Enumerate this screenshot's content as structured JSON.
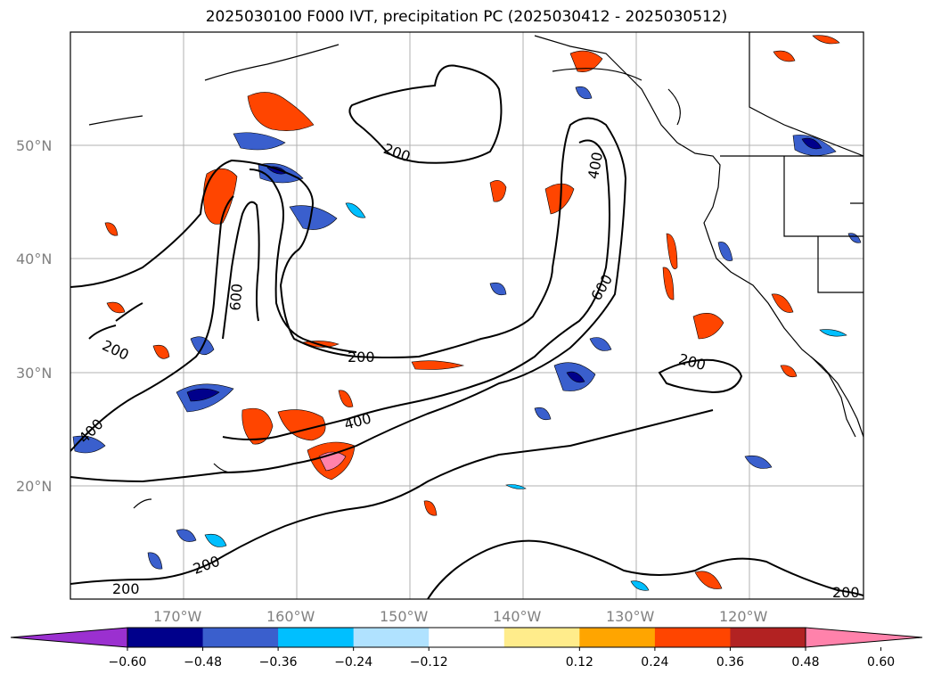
{
  "title": "2025030100 F000 IVT, precipitation PC (2025030412 - 2025030512)",
  "map": {
    "lon_range": [
      -180,
      -110
    ],
    "lat_range": [
      10,
      60
    ],
    "lat_ticks": [
      "20°N",
      "30°N",
      "40°N",
      "50°N"
    ],
    "lon_ticks": [
      "170°W",
      "160°W",
      "150°W",
      "140°W",
      "130°W",
      "120°W"
    ],
    "gridlines": true,
    "ivt_contour_labels": [
      "200",
      "200",
      "200",
      "200",
      "200",
      "200",
      "200",
      "400",
      "400",
      "400",
      "600",
      "600"
    ]
  },
  "colorbar": {
    "orientation": "horizontal",
    "extend": "both",
    "ticks": [
      "−0.60",
      "−0.48",
      "−0.36",
      "−0.24",
      "−0.12",
      "0.12",
      "0.24",
      "0.36",
      "0.48",
      "0.60"
    ],
    "colors": [
      "#9b30d0",
      "#00008b",
      "#3a5fcd",
      "#00bfff",
      "#b0e2ff",
      "#ffffff",
      "#ffec8b",
      "#ffa500",
      "#ff4500",
      "#b22222",
      "#ff82ab"
    ]
  }
}
